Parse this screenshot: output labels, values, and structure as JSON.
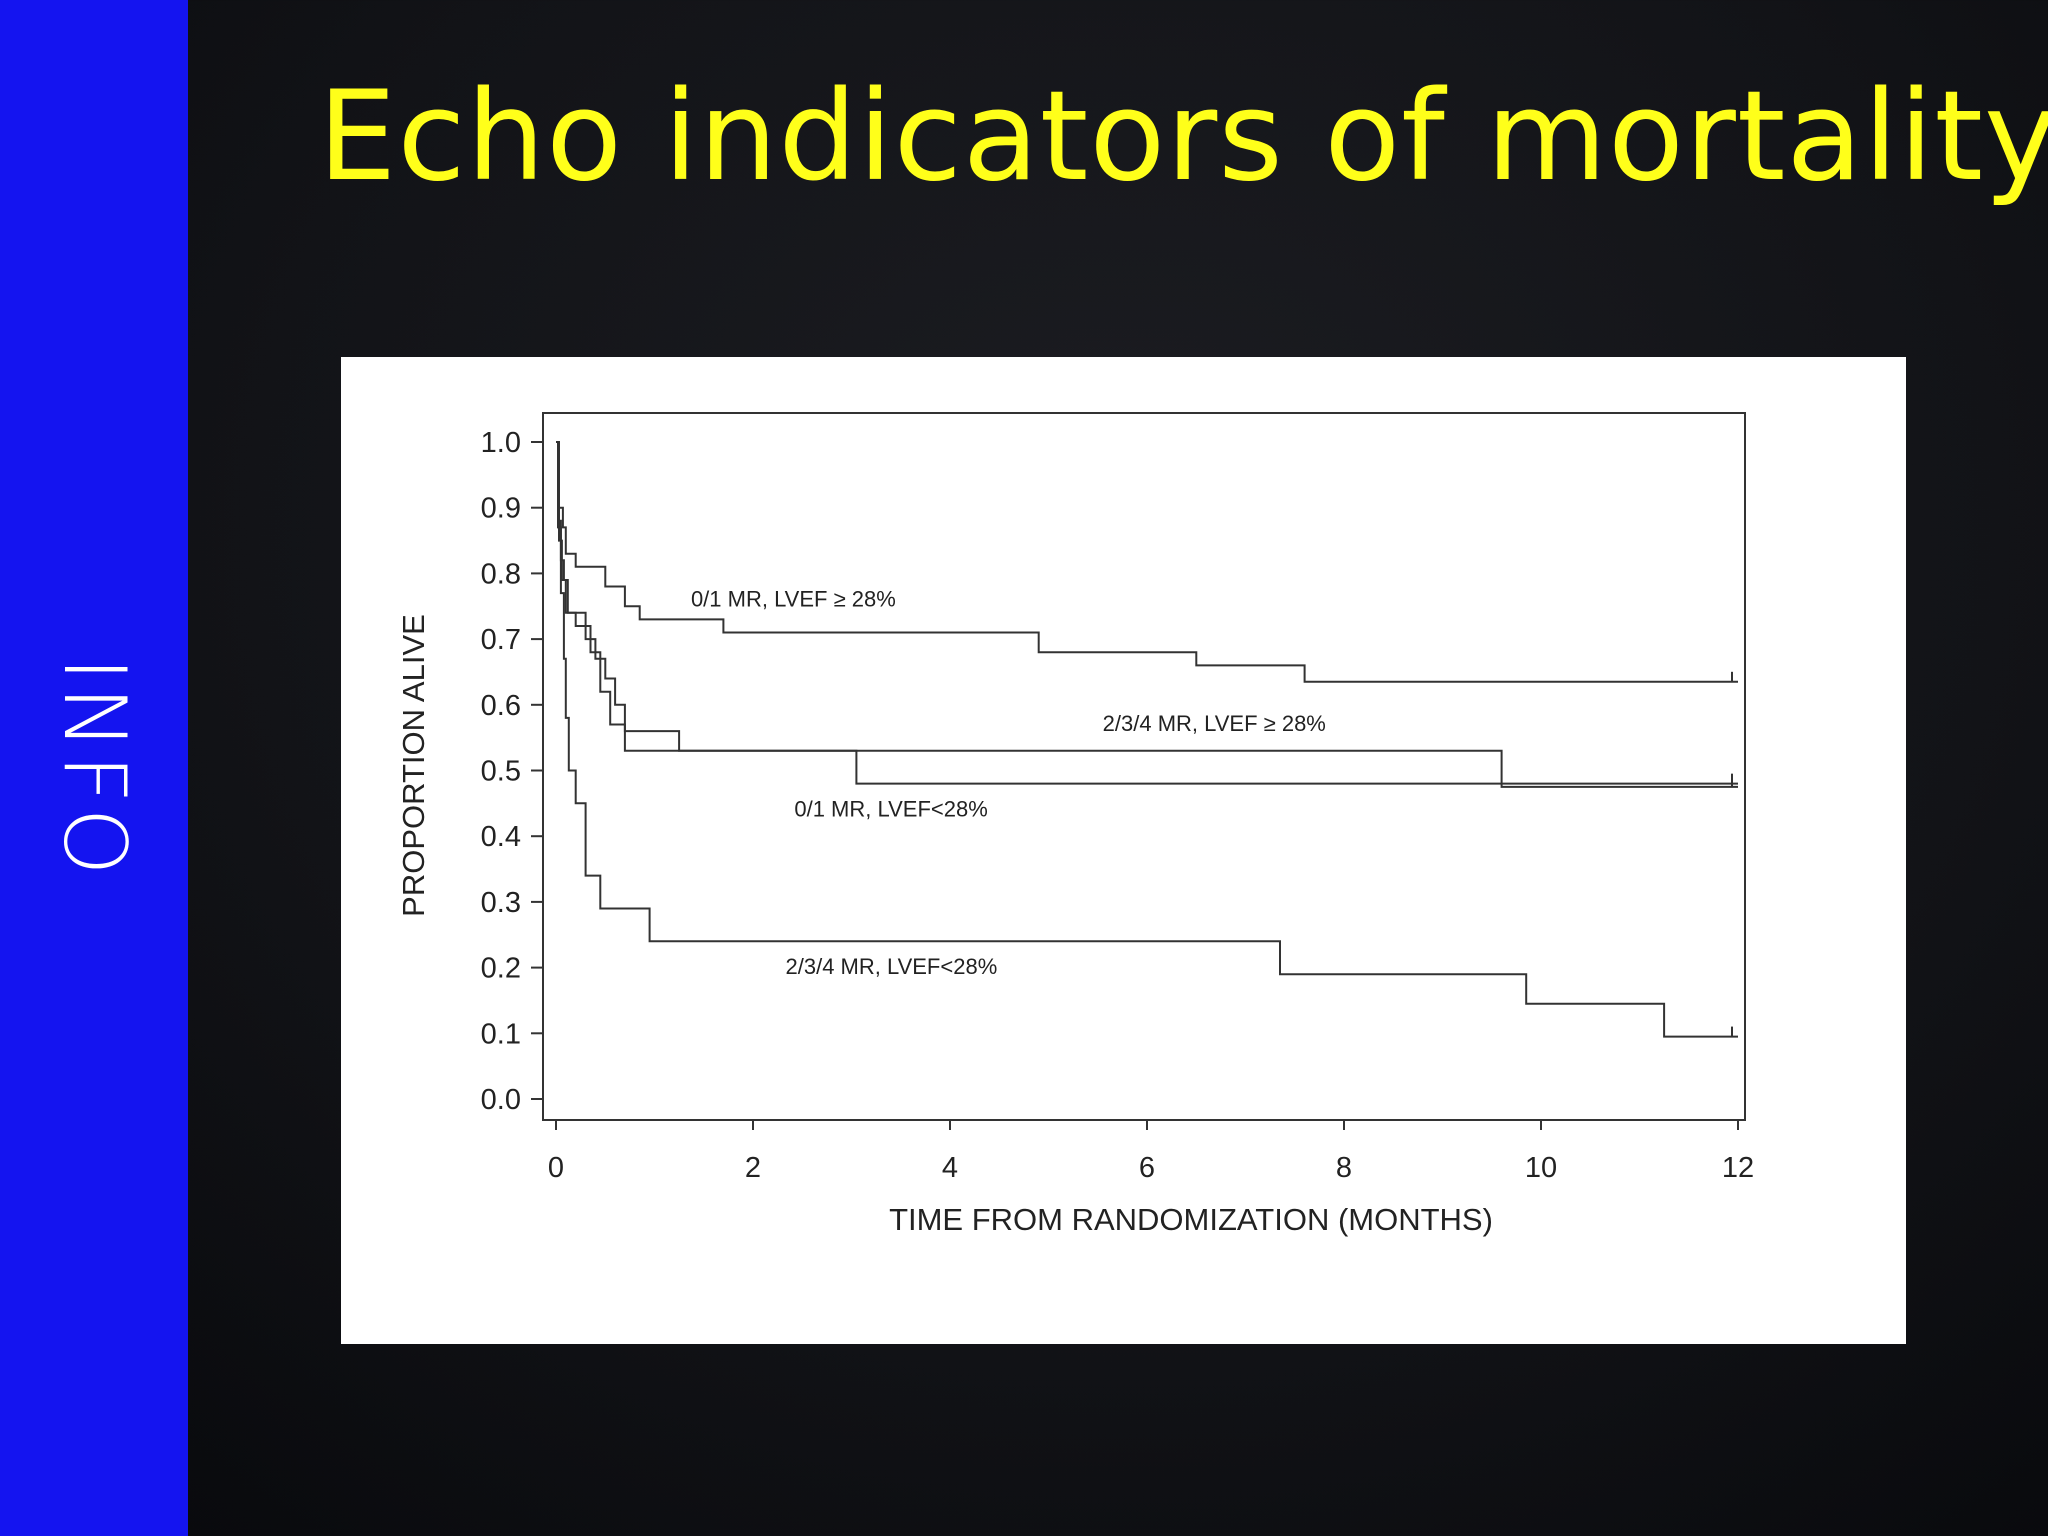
{
  "slide": {
    "title": "Echo indicators of mortality",
    "sidebar_label": "INFO",
    "colors": {
      "sidebar": "#1414f0",
      "title": "#ffff1a",
      "chart_bg": "#ffffff",
      "line": "#333333"
    }
  },
  "chart_data": {
    "type": "line",
    "title": "",
    "xlabel": "TIME FROM RANDOMIZATION (MONTHS)",
    "ylabel": "PROPORTION ALIVE",
    "xlim": [
      0,
      12
    ],
    "ylim": [
      0,
      1
    ],
    "xticks": [
      "0",
      "2",
      "4",
      "6",
      "8",
      "10",
      "12"
    ],
    "yticks": [
      "0.0",
      "0.1",
      "0.2",
      "0.3",
      "0.4",
      "0.5",
      "0.6",
      "0.7",
      "0.8",
      "0.9",
      "1.0"
    ],
    "grid": false,
    "step": true,
    "series": [
      {
        "name": "0/1 MR, LVEF ≥ 28%",
        "x": [
          0,
          0.03,
          0.07,
          0.1,
          0.2,
          0.5,
          0.7,
          0.85,
          1.7,
          4.9,
          6.5,
          7.6,
          12
        ],
        "y": [
          1.0,
          0.9,
          0.87,
          0.83,
          0.81,
          0.78,
          0.75,
          0.73,
          0.71,
          0.68,
          0.66,
          0.635,
          0.635
        ]
      },
      {
        "name": "2/3/4 MR, LVEF ≥ 28%",
        "x": [
          0,
          0.03,
          0.05,
          0.08,
          0.12,
          0.3,
          0.4,
          0.5,
          0.6,
          0.7,
          1.25,
          9.6,
          12
        ],
        "y": [
          1.0,
          0.88,
          0.82,
          0.79,
          0.74,
          0.7,
          0.67,
          0.64,
          0.6,
          0.56,
          0.53,
          0.475,
          0.475
        ]
      },
      {
        "name": "0/1 MR, LVEF<28%",
        "x": [
          0,
          0.03,
          0.06,
          0.1,
          0.2,
          0.35,
          0.45,
          0.55,
          0.7,
          3.05,
          12
        ],
        "y": [
          1.0,
          0.85,
          0.79,
          0.74,
          0.72,
          0.68,
          0.62,
          0.57,
          0.53,
          0.48,
          0.48
        ]
      },
      {
        "name": "2/3/4 MR, LVEF<28%",
        "x": [
          0,
          0.02,
          0.05,
          0.08,
          0.1,
          0.13,
          0.2,
          0.3,
          0.45,
          0.95,
          7.35,
          9.85,
          11.25,
          12
        ],
        "y": [
          1.0,
          0.87,
          0.77,
          0.67,
          0.58,
          0.5,
          0.45,
          0.34,
          0.29,
          0.24,
          0.19,
          0.145,
          0.095,
          0.095
        ]
      }
    ]
  }
}
